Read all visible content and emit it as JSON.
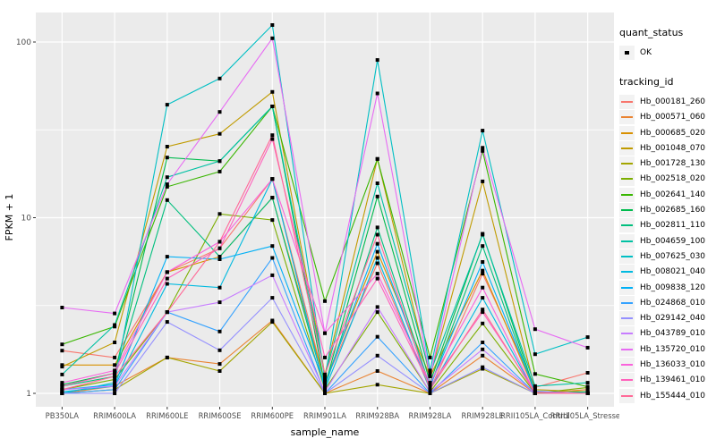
{
  "figure_type": "ggplot-line-chart",
  "colors": {
    "panel_bg": "#EBEBEB",
    "grid": "#FFFFFF",
    "tick_mark": "#333333",
    "tick_text": "#4D4D4D",
    "axis_title": "#000000",
    "marker": "#000000",
    "legend_key_bg": "#F2F2F2"
  },
  "legend": {
    "quant_status_title": "quant_status",
    "quant_status_items": [
      {
        "label": "OK",
        "marker": "black-point"
      }
    ],
    "tracking_title": "tracking_id"
  },
  "chart_data": {
    "type": "line",
    "title": "",
    "xlabel": "sample_name",
    "ylabel": "FPKM + 1",
    "y_scale": "log10",
    "y_ticks": [
      1,
      10,
      100
    ],
    "y_minor_ticks": [
      3.1623,
      31.623
    ],
    "ylim": [
      0.93,
      135
    ],
    "grid": true,
    "legend_position": "right",
    "point_marker": "small-black-square",
    "categories": [
      "PB350LA",
      "RRIM600LA",
      "RRIM600LE",
      "RRIM600SE",
      "RRIM600PE",
      "RRIM901LA",
      "RRIM928BA",
      "RRIM928LA",
      "RRIM928LE",
      "RRII105LA_Control",
      "RRII105LA_Stressed"
    ],
    "series": [
      {
        "name": "Hb_000181_260",
        "color": "#F8766D",
        "values": [
          1.75,
          1.6,
          4.9,
          6.7,
          16.6,
          1.15,
          5.5,
          1.05,
          4.8,
          1.08,
          1.31
        ]
      },
      {
        "name": "Hb_000571_060",
        "color": "#EA8331",
        "values": [
          1.0,
          1.1,
          1.6,
          1.47,
          2.6,
          1.0,
          1.34,
          1.0,
          1.64,
          1.0,
          1.05
        ]
      },
      {
        "name": "Hb_000685_020",
        "color": "#D89000",
        "values": [
          1.45,
          1.45,
          4.9,
          6.0,
          13.0,
          1.16,
          6.4,
          1.25,
          5.0,
          1.02,
          1.0
        ]
      },
      {
        "name": "Hb_001048_070",
        "color": "#C09B00",
        "values": [
          1.42,
          1.95,
          25.4,
          30.0,
          52.0,
          1.28,
          21.6,
          1.25,
          16.1,
          1.05,
          1.02
        ]
      },
      {
        "name": "Hb_001728_130",
        "color": "#A3A500",
        "values": [
          1.0,
          1.05,
          1.6,
          1.34,
          2.55,
          1.0,
          1.12,
          1.0,
          1.38,
          1.0,
          1.0
        ]
      },
      {
        "name": "Hb_002518_020",
        "color": "#7CAE00",
        "values": [
          1.05,
          1.2,
          2.9,
          10.5,
          9.7,
          1.05,
          2.9,
          1.02,
          2.5,
          1.0,
          1.08
        ]
      },
      {
        "name": "Hb_002641_140",
        "color": "#39B600",
        "values": [
          1.9,
          2.4,
          15.0,
          18.3,
          43.0,
          3.35,
          21.6,
          1.6,
          24.0,
          1.29,
          1.09
        ]
      },
      {
        "name": "Hb_002685_160",
        "color": "#00BB4E",
        "values": [
          1.12,
          1.3,
          22.0,
          21.0,
          43.0,
          1.1,
          13.2,
          1.15,
          8.1,
          1.02,
          1.0
        ]
      },
      {
        "name": "Hb_002811_110",
        "color": "#00BF7D",
        "values": [
          1.1,
          1.25,
          12.6,
          6.0,
          13.0,
          1.08,
          8.8,
          1.09,
          6.9,
          1.0,
          1.02
        ]
      },
      {
        "name": "Hb_004659_100",
        "color": "#00C1A3",
        "values": [
          1.28,
          2.45,
          17.0,
          21.0,
          43.0,
          1.25,
          15.7,
          1.3,
          8.0,
          1.1,
          1.15
        ]
      },
      {
        "name": "Hb_007625_030",
        "color": "#00BFC4",
        "values": [
          1.0,
          1.15,
          44.0,
          62.0,
          125.0,
          1.2,
          79.0,
          1.35,
          31.3,
          1.67,
          2.09
        ]
      },
      {
        "name": "Hb_008021_040",
        "color": "#00BAE0",
        "values": [
          1.02,
          1.1,
          4.2,
          4.0,
          16.6,
          1.05,
          5.9,
          1.05,
          3.5,
          1.0,
          1.0
        ]
      },
      {
        "name": "Hb_009838_120",
        "color": "#00B0F6",
        "values": [
          1.05,
          1.12,
          6.0,
          5.8,
          6.9,
          1.12,
          7.1,
          1.1,
          5.6,
          1.03,
          1.0
        ]
      },
      {
        "name": "Hb_024868_010",
        "color": "#35A2FF",
        "values": [
          1.0,
          1.05,
          2.9,
          2.25,
          5.9,
          1.0,
          2.1,
          1.0,
          1.95,
          1.0,
          1.0
        ]
      },
      {
        "name": "Hb_029142_040",
        "color": "#9590FF",
        "values": [
          1.0,
          1.0,
          2.55,
          1.76,
          3.5,
          1.0,
          1.64,
          1.0,
          1.41,
          1.0,
          1.0
        ]
      },
      {
        "name": "Hb_043789_010",
        "color": "#C77CFF",
        "values": [
          1.05,
          1.1,
          2.9,
          3.3,
          4.7,
          1.02,
          3.1,
          1.02,
          1.78,
          1.0,
          1.0
        ]
      },
      {
        "name": "Hb_135720_010",
        "color": "#E76BF3",
        "values": [
          3.08,
          2.85,
          15.5,
          40.0,
          105.0,
          2.2,
          51.0,
          1.25,
          25.0,
          2.32,
          1.82
        ]
      },
      {
        "name": "Hb_136033_010",
        "color": "#FA62DB",
        "values": [
          1.15,
          1.35,
          4.9,
          7.3,
          16.6,
          2.2,
          4.8,
          1.15,
          4.0,
          1.0,
          1.0
        ]
      },
      {
        "name": "Hb_139461_010",
        "color": "#FF62BC",
        "values": [
          1.1,
          1.3,
          4.5,
          6.7,
          28.0,
          1.6,
          4.5,
          1.1,
          2.9,
          1.02,
          1.0
        ]
      },
      {
        "name": "Hb_155444_010",
        "color": "#FF6A98",
        "values": [
          1.05,
          1.25,
          2.9,
          7.3,
          29.5,
          1.28,
          8.0,
          1.05,
          3.0,
          1.0,
          1.0
        ]
      }
    ]
  }
}
